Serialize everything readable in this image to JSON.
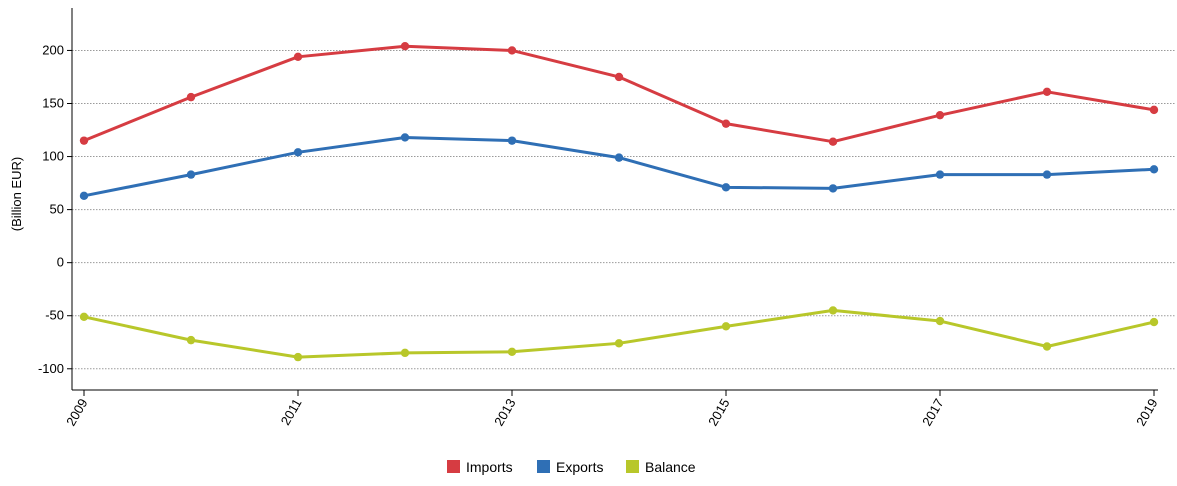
{
  "chart_data": {
    "type": "line",
    "title": "",
    "xlabel": "",
    "ylabel": "(Billion EUR)",
    "x": [
      2009,
      2010,
      2011,
      2012,
      2013,
      2014,
      2015,
      2016,
      2017,
      2018,
      2019
    ],
    "x_tick_labels": [
      "2009",
      "2011",
      "2013",
      "2015",
      "2017",
      "2019"
    ],
    "y_ticks": [
      -100,
      -50,
      0,
      50,
      100,
      150,
      200
    ],
    "ylim": [
      -120,
      240
    ],
    "grid": true,
    "legend": "bottom-center",
    "series": [
      {
        "name": "Imports",
        "color": "#d63c42",
        "values": [
          115,
          156,
          194,
          204,
          200,
          175,
          131,
          114,
          139,
          161,
          144
        ]
      },
      {
        "name": "Exports",
        "color": "#2f6fb5",
        "values": [
          63,
          83,
          104,
          118,
          115,
          99,
          71,
          70,
          83,
          83,
          88
        ]
      },
      {
        "name": "Balance",
        "color": "#b8c72a",
        "values": [
          -51,
          -73,
          -89,
          -85,
          -84,
          -76,
          -60,
          -45,
          -55,
          -79,
          -56
        ]
      }
    ]
  }
}
